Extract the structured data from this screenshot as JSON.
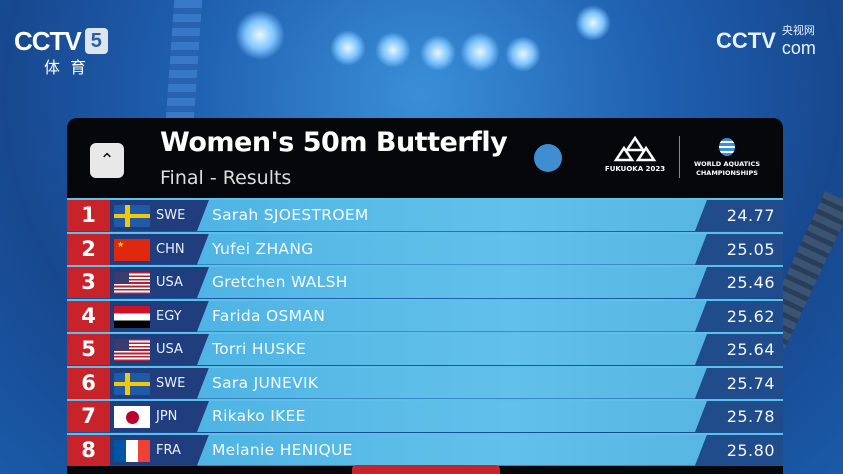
{
  "broadcaster": {
    "channel_logo": "CCTV",
    "channel_number": "5",
    "channel_sub": "体育",
    "watermark": "CCTV",
    "watermark_sub": "央视网",
    "watermark_domain": "com"
  },
  "header": {
    "title": "Women's 50m Butterfly",
    "subtitle": "Final - Results",
    "event_logo_text": "FUKUOKA 2023",
    "org_logo_text_1": "WORLD AQUATICS",
    "org_logo_text_2": "CHAMPIONSHIPS"
  },
  "colors": {
    "rank": "#c8232b",
    "code_box": "#203d7e",
    "name_bar": "#5bbbe6",
    "time_box": "#214c8c",
    "header": "#06070b"
  },
  "results": [
    {
      "rank": "1",
      "flag": "SWE",
      "code": "SWE",
      "name": "Sarah SJOESTROEM",
      "time": "24.77"
    },
    {
      "rank": "2",
      "flag": "CHN",
      "code": "CHN",
      "name": "Yufei ZHANG",
      "time": "25.05"
    },
    {
      "rank": "3",
      "flag": "USA",
      "code": "USA",
      "name": "Gretchen WALSH",
      "time": "25.46"
    },
    {
      "rank": "4",
      "flag": "EGY",
      "code": "EGY",
      "name": "Farida OSMAN",
      "time": "25.62"
    },
    {
      "rank": "5",
      "flag": "USA",
      "code": "USA",
      "name": "Torri HUSKE",
      "time": "25.64"
    },
    {
      "rank": "6",
      "flag": "SWE",
      "code": "SWE",
      "name": "Sara JUNEVIK",
      "time": "25.74"
    },
    {
      "rank": "7",
      "flag": "JPN",
      "code": "JPN",
      "name": "Rikako IKEE",
      "time": "25.78"
    },
    {
      "rank": "8",
      "flag": "FRA",
      "code": "FRA",
      "name": "Melanie HENIQUE",
      "time": "25.80"
    }
  ]
}
